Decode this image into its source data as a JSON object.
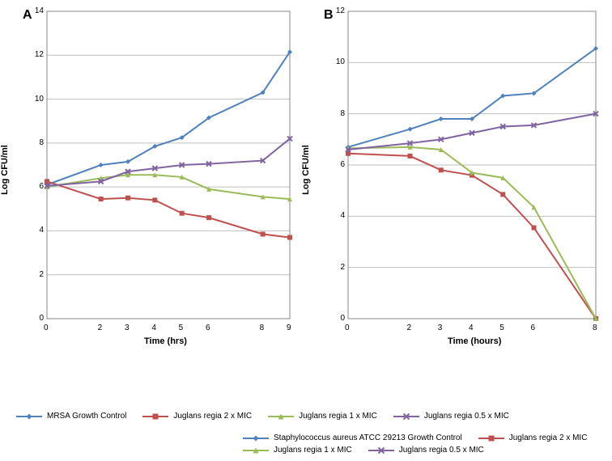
{
  "panelA": {
    "label": "A",
    "type": "line",
    "xlabel": "Time (hrs)",
    "ylabel": "Log CFU/ml",
    "xlim": [
      0,
      9
    ],
    "ylim": [
      0,
      14
    ],
    "xticks": [
      0,
      2,
      3,
      4,
      5,
      6,
      8,
      9
    ],
    "yticks": [
      0,
      2,
      4,
      6,
      8,
      10,
      12,
      14
    ],
    "series": [
      {
        "name": "MRSA Growth Control",
        "color": "#4f81bd",
        "marker": "diamond",
        "x": [
          0,
          2,
          3,
          4,
          5,
          6,
          8,
          9
        ],
        "y": [
          6.1,
          7.0,
          7.15,
          7.85,
          8.25,
          9.15,
          10.3,
          12.15
        ]
      },
      {
        "name": "Juglans regia 2 x MIC",
        "color": "#c0504d",
        "marker": "square",
        "x": [
          0,
          2,
          3,
          4,
          5,
          6,
          8,
          9
        ],
        "y": [
          6.25,
          5.45,
          5.5,
          5.4,
          4.8,
          4.6,
          3.85,
          3.7
        ]
      },
      {
        "name": "Juglans regia 1 x MIC",
        "color": "#9bbb59",
        "marker": "triangle",
        "x": [
          0,
          2,
          3,
          4,
          5,
          6,
          8,
          9
        ],
        "y": [
          6.0,
          6.4,
          6.55,
          6.55,
          6.45,
          5.9,
          5.55,
          5.45
        ]
      },
      {
        "name": "Juglans regia 0.5 x MIC",
        "color": "#8064a2",
        "marker": "x",
        "x": [
          0,
          2,
          3,
          4,
          5,
          6,
          8,
          9
        ],
        "y": [
          6.05,
          6.25,
          6.7,
          6.85,
          7.0,
          7.05,
          7.2,
          8.2
        ]
      }
    ]
  },
  "panelB": {
    "label": "B",
    "type": "line",
    "xlabel": "Time (hours)",
    "ylabel": "Log CFU/ml",
    "xlim": [
      0,
      8
    ],
    "ylim": [
      0,
      12
    ],
    "xticks": [
      0,
      2,
      3,
      4,
      5,
      6,
      8
    ],
    "yticks": [
      0,
      2,
      4,
      6,
      8,
      10,
      12
    ],
    "series": [
      {
        "name": "Staphylococcus aureus ATCC 29213 Growth Control",
        "color": "#4f81bd",
        "marker": "diamond",
        "x": [
          0,
          2,
          3,
          4,
          5,
          6,
          8
        ],
        "y": [
          6.7,
          7.4,
          7.8,
          7.8,
          8.7,
          8.8,
          10.55
        ]
      },
      {
        "name": "Juglans regia 2 x MIC",
        "color": "#c0504d",
        "marker": "square",
        "x": [
          0,
          2,
          3,
          4,
          5,
          6,
          8
        ],
        "y": [
          6.45,
          6.35,
          5.8,
          5.6,
          4.85,
          3.55,
          0
        ]
      },
      {
        "name": "Juglans regia 1 x MIC",
        "color": "#9bbb59",
        "marker": "triangle",
        "x": [
          0,
          2,
          3,
          4,
          5,
          6,
          8
        ],
        "y": [
          6.65,
          6.7,
          6.6,
          5.7,
          5.5,
          4.35,
          0
        ]
      },
      {
        "name": "Juglans regia 0.5 x MIC",
        "color": "#8064a2",
        "marker": "x",
        "x": [
          0,
          2,
          3,
          4,
          5,
          6,
          8
        ],
        "y": [
          6.6,
          6.85,
          7.0,
          7.25,
          7.5,
          7.55,
          8.0
        ]
      }
    ]
  },
  "style": {
    "bg": "#ffffff",
    "grid": "#bfbfbf",
    "axis": "#8a8a8a",
    "line_width": 2,
    "marker_size": 6,
    "font": "Arial"
  }
}
